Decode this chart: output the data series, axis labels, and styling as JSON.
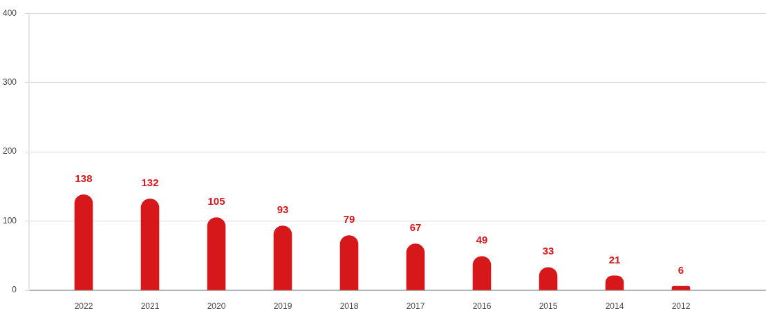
{
  "chart_data": {
    "type": "bar",
    "categories": [
      "2022",
      "2021",
      "2020",
      "2019",
      "2018",
      "2017",
      "2016",
      "2015",
      "2014",
      "2012"
    ],
    "values": [
      138,
      132,
      105,
      93,
      79,
      67,
      49,
      33,
      21,
      6
    ],
    "color": "#d6181b",
    "ylim": [
      0,
      400
    ],
    "yticks": [
      0,
      100,
      200,
      300,
      400
    ],
    "grid": "y",
    "data_labels": true
  }
}
